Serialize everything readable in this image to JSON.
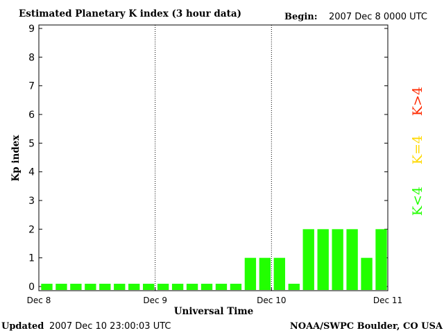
{
  "header": {
    "title": "Estimated Planetary K index (3 hour data)",
    "begin_label": "Begin:",
    "begin_value": "2007 Dec 8 0000 UTC"
  },
  "footer": {
    "updated_label": "Updated",
    "updated_value": "2007 Dec 10 23:00:03 UTC",
    "source": "NOAA/SWPC Boulder, CO USA"
  },
  "legend": [
    {
      "label": "K>4",
      "color": "#ff2a00"
    },
    {
      "label": "K=4",
      "color": "#ffd800"
    },
    {
      "label": "K<4",
      "color": "#22ff00"
    }
  ],
  "chart_data": {
    "type": "bar",
    "title": "Estimated Planetary K index (3 hour data)",
    "xlabel": "Universal Time",
    "ylabel": "Kp index",
    "ylim": [
      0,
      9
    ],
    "yticks": [
      "0",
      "1",
      "2",
      "3",
      "4",
      "5",
      "6",
      "7",
      "8",
      "9"
    ],
    "xticks": [
      "Dec 8",
      "Dec 9",
      "Dec 10",
      "Dec 11"
    ],
    "grid": "dotted vertical day separators",
    "bar_color": "#22ff00",
    "values": [
      0,
      0,
      0,
      0,
      0,
      0,
      0,
      0,
      0,
      0,
      0,
      0,
      0,
      0,
      1,
      1,
      1,
      0,
      2,
      2,
      2,
      2,
      1,
      2
    ]
  }
}
